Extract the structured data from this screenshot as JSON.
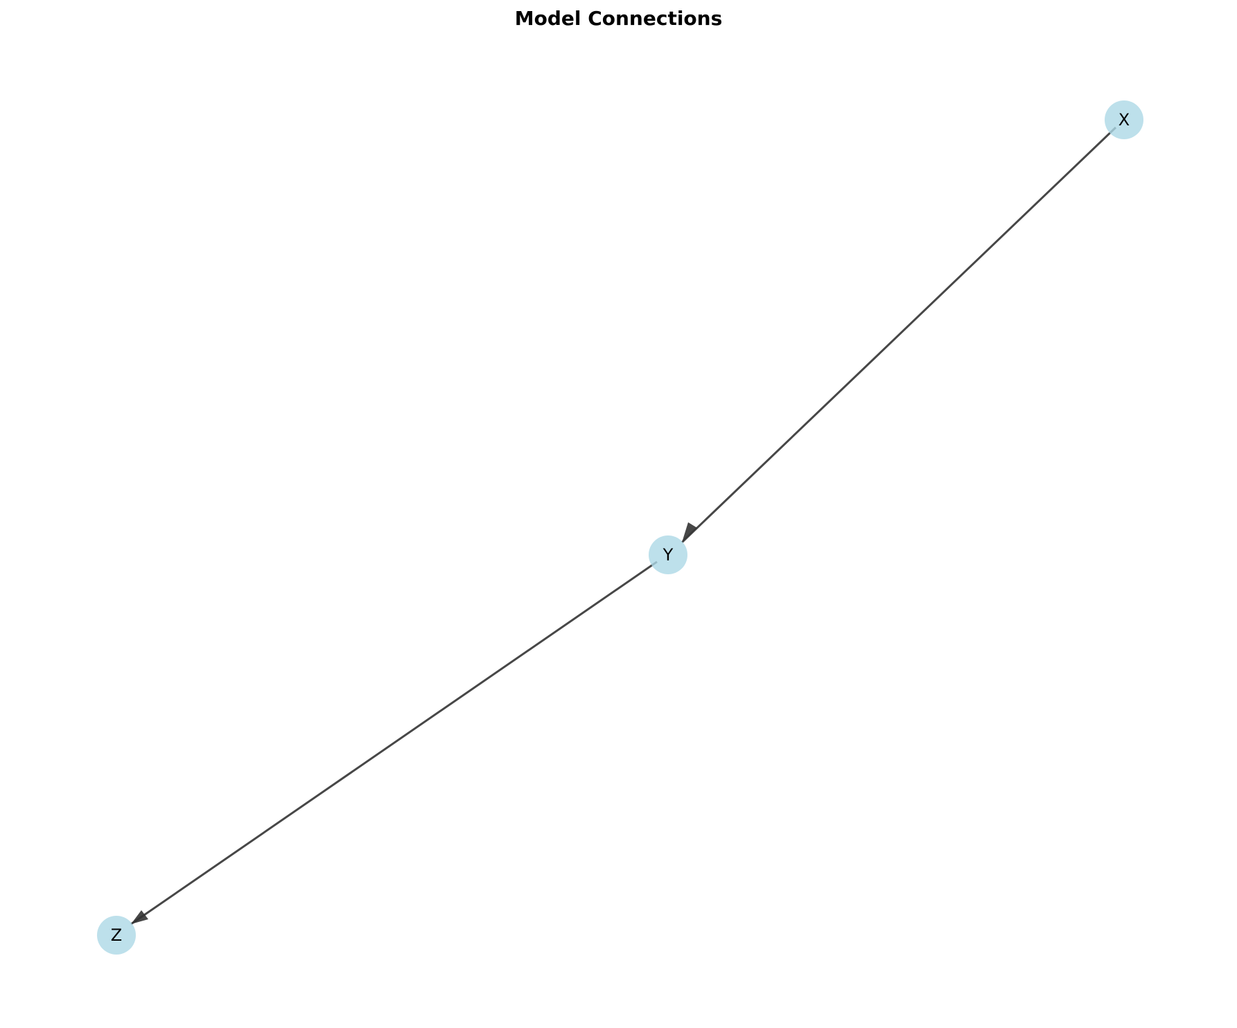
{
  "diagram": {
    "title": "Model Connections",
    "nodes": [
      {
        "id": "X",
        "label": "X"
      },
      {
        "id": "Y",
        "label": "Y"
      },
      {
        "id": "Z",
        "label": "Z"
      }
    ],
    "edges": [
      {
        "from": "X",
        "to": "Y",
        "directed": true
      },
      {
        "from": "Y",
        "to": "Z",
        "directed": true
      }
    ],
    "colors": {
      "node_fill": "#add8e6",
      "edge": "#333333",
      "label": "#000000"
    }
  }
}
